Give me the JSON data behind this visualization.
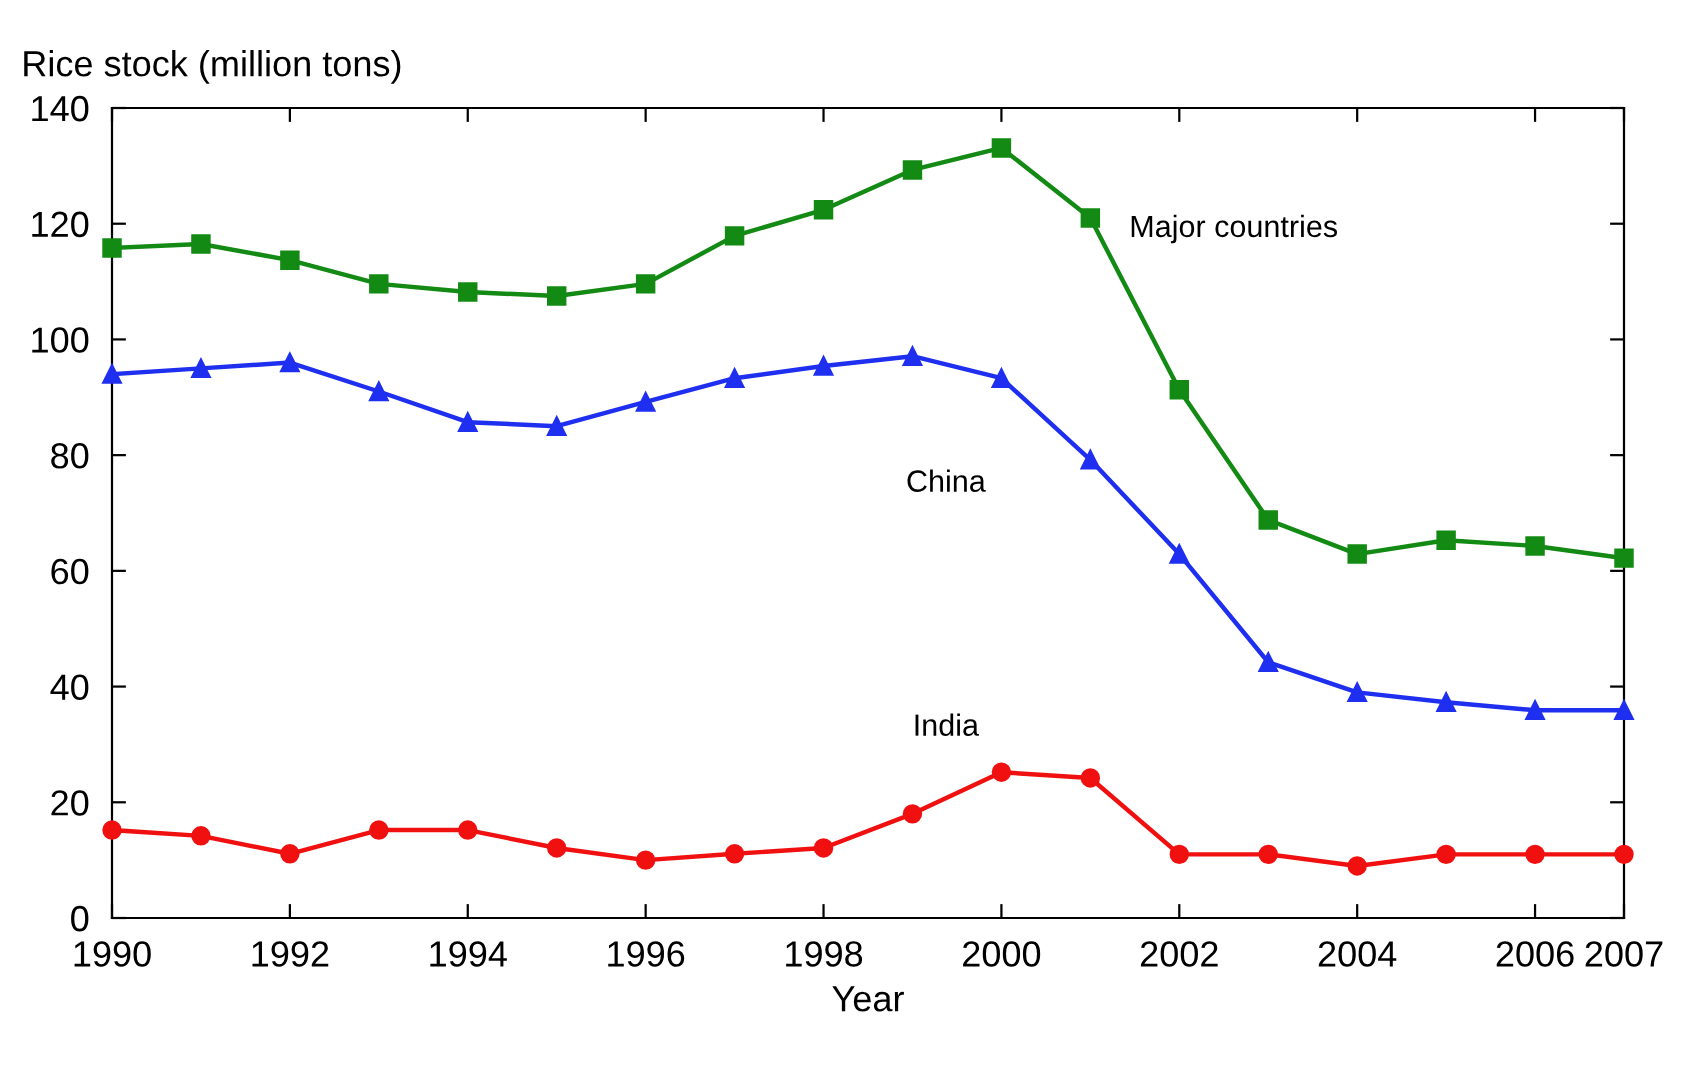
{
  "chart_data": {
    "type": "line",
    "ylabel": "Rice stock (million tons)",
    "xlabel": "Year",
    "x": [
      1990,
      1991,
      1992,
      1993,
      1994,
      1995,
      1996,
      1997,
      1998,
      1999,
      2000,
      2001,
      2002,
      2003,
      2004,
      2005,
      2006,
      2007
    ],
    "series": [
      {
        "name": "Major countries",
        "color": "#138a13",
        "marker": "square",
        "values": [
          115.8,
          116.5,
          113.7,
          109.6,
          108.2,
          107.5,
          109.6,
          117.9,
          122.4,
          129.3,
          133.1,
          121,
          91.3,
          68.8,
          62.9,
          65.3,
          64.3,
          62.2
        ]
      },
      {
        "name": "China",
        "color": "#1f2ff0",
        "marker": "triangle",
        "values": [
          94,
          95,
          96,
          91,
          85.7,
          85,
          89.2,
          93.3,
          95.4,
          97.1,
          93.3,
          79.2,
          62.9,
          44.2,
          39,
          37.3,
          35.9,
          35.9
        ]
      },
      {
        "name": "India",
        "color": "#f01010",
        "marker": "circle",
        "values": [
          15.2,
          14.2,
          11.1,
          15.2,
          15.2,
          12.1,
          10,
          11.1,
          12.1,
          18,
          25.2,
          24.2,
          11,
          11,
          9,
          11,
          11,
          11
        ]
      }
    ],
    "xlim": [
      1990,
      2007
    ],
    "xticks": [
      1990,
      1992,
      1994,
      1996,
      1998,
      2000,
      2002,
      2004,
      2006,
      2007
    ],
    "ylim": [
      0,
      140
    ],
    "yticks": [
      0,
      20,
      40,
      60,
      80,
      100,
      120,
      140
    ],
    "grid": false,
    "legend": false,
    "line_style": "solid"
  }
}
